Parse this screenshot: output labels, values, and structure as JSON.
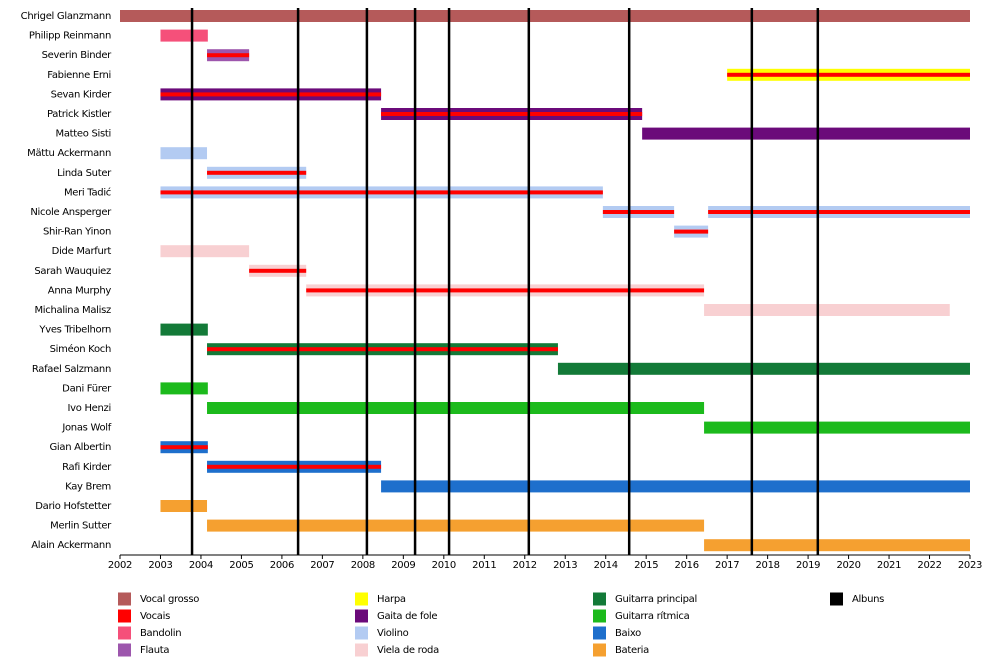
{
  "chart_data": {
    "type": "timeline",
    "xlim": [
      2002,
      2023
    ],
    "xticks": [
      2002,
      2003,
      2004,
      2005,
      2006,
      2007,
      2008,
      2009,
      2010,
      2011,
      2012,
      2013,
      2014,
      2015,
      2016,
      2017,
      2018,
      2019,
      2020,
      2021,
      2022,
      2023
    ],
    "roles": [
      {
        "name": "Vocal grosso",
        "color": "#b55a5a"
      },
      {
        "name": "Vocais",
        "color": "#ff0000"
      },
      {
        "name": "Bandolin",
        "color": "#f5507a"
      },
      {
        "name": "Flauta",
        "color": "#9d56ad"
      },
      {
        "name": "Harpa",
        "color": "#ffff00"
      },
      {
        "name": "Gaita de fole",
        "color": "#6b0a7a"
      },
      {
        "name": "Violino",
        "color": "#b3cbf2"
      },
      {
        "name": "Viela de roda",
        "color": "#f8d0d2"
      },
      {
        "name": "Guitarra principal",
        "color": "#137a38"
      },
      {
        "name": "Guitarra rítmica",
        "color": "#1cba1c"
      },
      {
        "name": "Baixo",
        "color": "#1e6fcc"
      },
      {
        "name": "Bateria",
        "color": "#f5a030"
      }
    ],
    "albums": {
      "name": "Albuns",
      "color": "#000000",
      "x": [
        2003.78,
        2006.4,
        2008.1,
        2009.29,
        2010.13,
        2012.1,
        2014.58,
        2017.61,
        2019.24
      ]
    },
    "members": [
      {
        "name": "Chrigel Glanzmann",
        "bars": [
          {
            "roles": [
              "Vocal grosso"
            ],
            "start": 2002,
            "end": 2023
          }
        ]
      },
      {
        "name": "Philipp Reinmann",
        "bars": [
          {
            "roles": [
              "Bandolin"
            ],
            "start": 2003,
            "end": 2004.17
          }
        ]
      },
      {
        "name": "Severin Binder",
        "bars": [
          {
            "roles": [
              "Flauta",
              "Vocais"
            ],
            "start": 2004.15,
            "end": 2005.19
          }
        ]
      },
      {
        "name": "Fabienne Erni",
        "bars": [
          {
            "roles": [
              "Harpa",
              "Vocais"
            ],
            "start": 2017.0,
            "end": 2023
          }
        ]
      },
      {
        "name": "Sevan Kirder",
        "bars": [
          {
            "roles": [
              "Gaita de fole",
              "Vocais"
            ],
            "start": 2003,
            "end": 2008.45
          }
        ]
      },
      {
        "name": "Patrick Kistler",
        "bars": [
          {
            "roles": [
              "Gaita de fole",
              "Vocais"
            ],
            "start": 2008.45,
            "end": 2014.9
          }
        ]
      },
      {
        "name": "Matteo Sisti",
        "bars": [
          {
            "roles": [
              "Gaita de fole"
            ],
            "start": 2014.9,
            "end": 2023
          }
        ]
      },
      {
        "name": "Mättu Ackermann",
        "bars": [
          {
            "roles": [
              "Violino"
            ],
            "start": 2003,
            "end": 2004.15
          }
        ]
      },
      {
        "name": "Linda Suter",
        "bars": [
          {
            "roles": [
              "Violino",
              "Vocais"
            ],
            "start": 2004.15,
            "end": 2006.6
          }
        ]
      },
      {
        "name": "Meri Tadić",
        "bars": [
          {
            "roles": [
              "Violino",
              "Vocais"
            ],
            "start": 2003,
            "end": 2013.93
          }
        ]
      },
      {
        "name": "Nicole Ansperger",
        "bars": [
          {
            "roles": [
              "Violino",
              "Vocais"
            ],
            "start": 2013.93,
            "end": 2015.69
          },
          {
            "roles": [
              "Violino",
              "Vocais"
            ],
            "start": 2016.53,
            "end": 2023
          }
        ]
      },
      {
        "name": "Shir-Ran Yinon",
        "bars": [
          {
            "roles": [
              "Violino",
              "Vocais"
            ],
            "start": 2015.69,
            "end": 2016.53
          }
        ]
      },
      {
        "name": "Dide Marfurt",
        "bars": [
          {
            "roles": [
              "Viela de roda"
            ],
            "start": 2003,
            "end": 2005.19
          }
        ]
      },
      {
        "name": "Sarah Wauquiez",
        "bars": [
          {
            "roles": [
              "Viela de roda",
              "Vocais"
            ],
            "start": 2005.19,
            "end": 2006.6
          }
        ]
      },
      {
        "name": "Anna Murphy",
        "bars": [
          {
            "roles": [
              "Viela de roda",
              "Vocais"
            ],
            "start": 2006.6,
            "end": 2016.43
          }
        ]
      },
      {
        "name": "Michalina Malisz",
        "bars": [
          {
            "roles": [
              "Viela de roda"
            ],
            "start": 2016.43,
            "end": 2022.5
          }
        ]
      },
      {
        "name": "Yves Tribelhorn",
        "bars": [
          {
            "roles": [
              "Guitarra principal"
            ],
            "start": 2003,
            "end": 2004.17
          }
        ]
      },
      {
        "name": "Siméon Koch",
        "bars": [
          {
            "roles": [
              "Guitarra principal",
              "Vocais"
            ],
            "start": 2004.15,
            "end": 2012.82
          }
        ]
      },
      {
        "name": "Rafael Salzmann",
        "bars": [
          {
            "roles": [
              "Guitarra principal"
            ],
            "start": 2012.82,
            "end": 2023
          }
        ]
      },
      {
        "name": "Dani Fürer",
        "bars": [
          {
            "roles": [
              "Guitarra rítmica"
            ],
            "start": 2003,
            "end": 2004.17
          }
        ]
      },
      {
        "name": "Ivo Henzi",
        "bars": [
          {
            "roles": [
              "Guitarra rítmica"
            ],
            "start": 2004.15,
            "end": 2016.43
          }
        ]
      },
      {
        "name": "Jonas Wolf",
        "bars": [
          {
            "roles": [
              "Guitarra rítmica"
            ],
            "start": 2016.43,
            "end": 2023
          }
        ]
      },
      {
        "name": "Gian Albertin",
        "bars": [
          {
            "roles": [
              "Baixo",
              "Vocais"
            ],
            "start": 2003,
            "end": 2004.17
          }
        ]
      },
      {
        "name": "Rafi Kirder",
        "bars": [
          {
            "roles": [
              "Baixo",
              "Vocais"
            ],
            "start": 2004.15,
            "end": 2008.45
          }
        ]
      },
      {
        "name": "Kay Brem",
        "bars": [
          {
            "roles": [
              "Baixo"
            ],
            "start": 2008.45,
            "end": 2023
          }
        ]
      },
      {
        "name": "Dario Hofstetter",
        "bars": [
          {
            "roles": [
              "Bateria"
            ],
            "start": 2003,
            "end": 2004.15
          }
        ]
      },
      {
        "name": "Merlin Sutter",
        "bars": [
          {
            "roles": [
              "Bateria"
            ],
            "start": 2004.15,
            "end": 2016.43
          }
        ]
      },
      {
        "name": "Alain Ackermann",
        "bars": [
          {
            "roles": [
              "Bateria"
            ],
            "start": 2016.43,
            "end": 2023
          }
        ]
      }
    ]
  }
}
